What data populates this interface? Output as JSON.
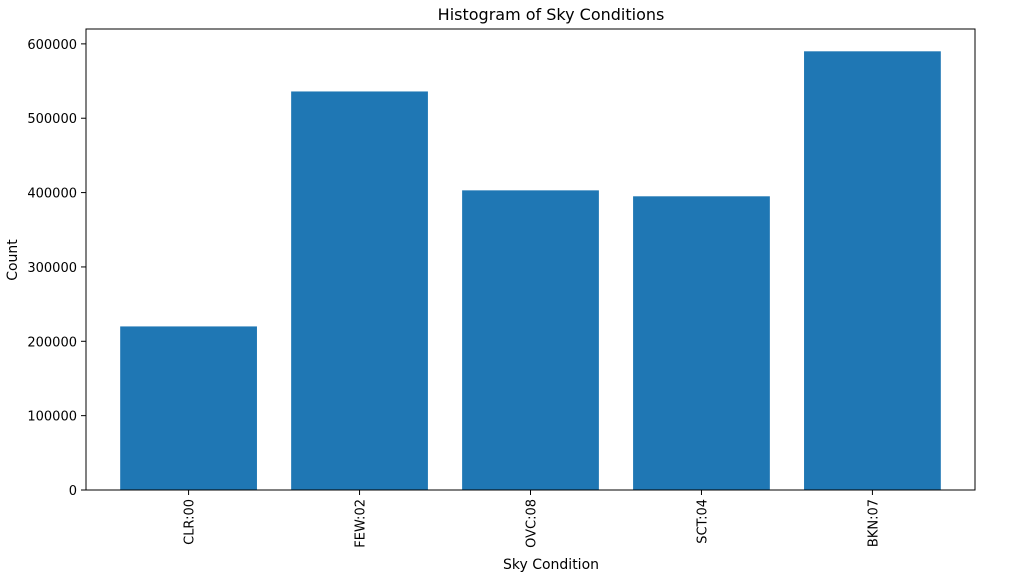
{
  "chart_data": {
    "type": "bar",
    "title": "Histogram of Sky Conditions",
    "xlabel": "Sky Condition",
    "ylabel": "Count",
    "categories": [
      "CLR:00",
      "FEW:02",
      "OVC:08",
      "SCT:04",
      "BKN:07"
    ],
    "values": [
      220000,
      536000,
      403000,
      395000,
      590000
    ],
    "ylim": [
      0,
      620000
    ],
    "yticks": [
      0,
      100000,
      200000,
      300000,
      400000,
      500000,
      600000
    ],
    "ytick_labels": [
      "0",
      "100000",
      "200000",
      "300000",
      "400000",
      "500000",
      "600000"
    ],
    "bar_color": "#1f77b4",
    "grid": false,
    "legend": "none"
  }
}
